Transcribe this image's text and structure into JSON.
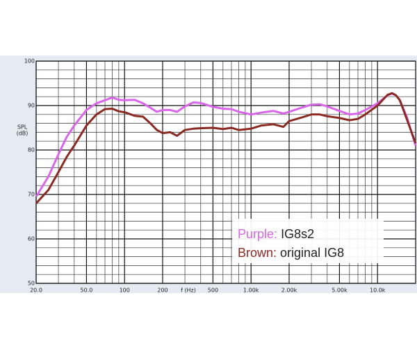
{
  "chart_data": {
    "type": "line",
    "log_x": true,
    "grid": true,
    "ylabel": "SPL",
    "yunit": "(dB)",
    "xlabel": "f (Hz)",
    "x": [
      20,
      25,
      30,
      35,
      40,
      50,
      60,
      70,
      80,
      90,
      100,
      120,
      140,
      160,
      180,
      200,
      230,
      260,
      300,
      350,
      400,
      500,
      600,
      700,
      800,
      1000,
      1200,
      1500,
      1800,
      2000,
      2500,
      3000,
      3500,
      4000,
      5000,
      6000,
      7000,
      8000,
      10000,
      12000,
      13000,
      14000,
      15000,
      17000,
      20000
    ],
    "series": [
      {
        "name": "IG8s2",
        "color_word": "Purple:",
        "color": "#d966ea",
        "values": [
          69.5,
          74,
          79,
          83,
          85.5,
          89,
          90.5,
          91.2,
          91.8,
          91.3,
          91.2,
          91.3,
          90.5,
          89.5,
          88.6,
          89,
          89,
          88.6,
          89.8,
          90.7,
          90.6,
          89.7,
          89.3,
          89.2,
          88.6,
          88,
          88.4,
          88.8,
          88.2,
          88.6,
          89.5,
          90.2,
          90.3,
          89.8,
          88.8,
          88,
          88.2,
          89,
          90.5,
          92.3,
          92.7,
          92.3,
          91.2,
          87.5,
          81
        ]
      },
      {
        "name": "original IG8",
        "color_word": "Brown:",
        "color": "#8b2a23",
        "values": [
          68,
          71,
          75,
          78.5,
          81,
          85.5,
          88,
          89.2,
          89.3,
          88.7,
          88.5,
          87.7,
          87.5,
          86,
          84.5,
          83.8,
          84,
          83.2,
          84.5,
          84.8,
          84.9,
          85,
          84.7,
          85,
          84.5,
          84.8,
          85.5,
          85.8,
          85.2,
          86.5,
          87.3,
          88,
          88,
          87.6,
          87.2,
          86.7,
          87,
          88,
          90,
          92.4,
          92.8,
          92.3,
          91.2,
          87,
          81.5
        ]
      }
    ],
    "xlim": [
      20,
      20000
    ],
    "xticks": [
      {
        "value": 20,
        "label": "20.0"
      },
      {
        "value": 50,
        "label": "50.0"
      },
      100,
      200,
      500,
      {
        "value": 1000,
        "label": "1.00k"
      },
      {
        "value": 2000,
        "label": "2.00k"
      },
      {
        "value": 5000,
        "label": "5.00k"
      },
      {
        "value": 10000,
        "label": "10.0k"
      }
    ],
    "xminor": [
      30,
      40,
      60,
      70,
      80,
      90,
      300,
      400,
      600,
      700,
      800,
      900,
      3000,
      4000,
      6000,
      7000,
      8000,
      9000,
      20000
    ],
    "ylim": [
      50,
      100
    ],
    "yticks": [
      50,
      60,
      70,
      80,
      90,
      100
    ],
    "yminor": [
      52,
      54,
      56,
      58,
      62,
      64,
      66,
      68,
      72,
      74,
      76,
      78,
      82,
      84,
      86,
      88,
      92,
      94,
      96,
      98
    ]
  }
}
